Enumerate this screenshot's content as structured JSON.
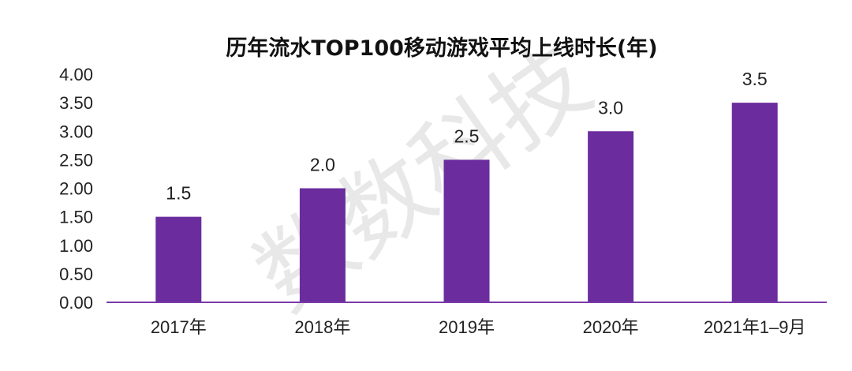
{
  "watermark": "数数科技",
  "chart_data": {
    "type": "bar",
    "title": "历年流水TOP100移动游戏平均上线时长(年)",
    "categories": [
      "2017年",
      "2018年",
      "2019年",
      "2020年",
      "2021年1–9月"
    ],
    "values": [
      1.5,
      2.0,
      2.5,
      3.0,
      3.5
    ],
    "data_labels": [
      "1.5",
      "2.0",
      "2.5",
      "3.0",
      "3.5"
    ],
    "y_ticks": [
      "0.00",
      "0.50",
      "1.00",
      "1.50",
      "2.00",
      "2.50",
      "3.00",
      "3.50",
      "4.00"
    ],
    "ylim": [
      0,
      4
    ],
    "xlabel": "",
    "ylabel": "",
    "grid": false,
    "legend": "none",
    "colors": {
      "bar": "#6b2d9e",
      "axis": "#7a3aa8"
    }
  }
}
